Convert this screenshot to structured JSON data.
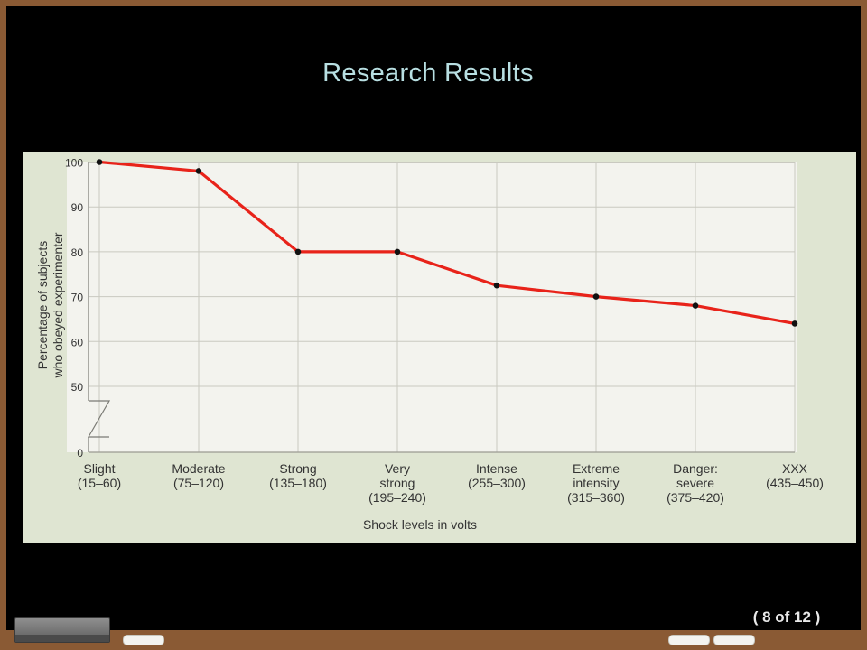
{
  "slide": {
    "title": "Research Results",
    "counter": "( 8  of 12 )"
  },
  "colors": {
    "board": "#000000",
    "frame": "#8a5a34",
    "title": "#b8dfe2",
    "panel": "#dfe5d2",
    "plot_bg": "#f3f3ee",
    "line": "#e8231a",
    "point": "#111111"
  },
  "chart_data": {
    "type": "line",
    "title": "",
    "xlabel": "Shock levels in volts",
    "ylabel": [
      "Percentage of subjects",
      "who obeyed experimenter"
    ],
    "ylim": [
      0,
      100
    ],
    "axis_break": "between 0 and 50",
    "grid": true,
    "y_ticks": [
      "0",
      "50",
      "60",
      "70",
      "80",
      "90",
      "100"
    ],
    "categories": [
      [
        "Slight",
        "(15–60)"
      ],
      [
        "Moderate",
        "(75–120)"
      ],
      [
        "Strong",
        "(135–180)"
      ],
      [
        "Very",
        "strong",
        "(195–240)"
      ],
      [
        "Intense",
        "(255–300)"
      ],
      [
        "Extreme",
        "intensity",
        "(315–360)"
      ],
      [
        "Danger:",
        "severe",
        "(375–420)"
      ],
      [
        "XXX",
        "(435–450)"
      ]
    ],
    "values": [
      100,
      98,
      80,
      80,
      72.5,
      70,
      68,
      64
    ]
  }
}
